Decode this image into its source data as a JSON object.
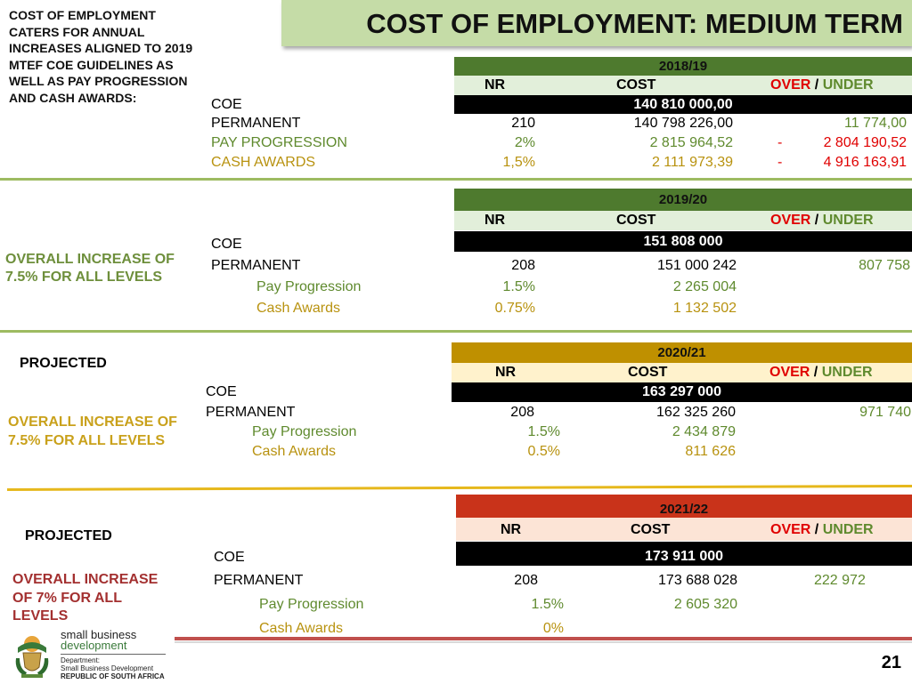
{
  "title": "COST OF EMPLOYMENT: MEDIUM TERM",
  "intro_note": "COST OF EMPLOYMENT CATERS FOR ANNUAL INCREASES ALIGNED TO 2019 MTEF COE GUIDELINES AS WELL AS PAY PROGRESSION AND CASH AWARDS:",
  "page_number": "21",
  "colors": {
    "title_bg": "#c5dca7",
    "green_band": "#4e7a2e",
    "green_header": "#e2efda",
    "gold_band": "#bf9000",
    "gold_header": "#fff2cc",
    "red_band": "#c9331a",
    "red_header": "#fce4d6"
  },
  "headers": {
    "nr": "NR",
    "cost": "COST",
    "over": "OVER",
    "slash": "/",
    "under": "UNDER"
  },
  "labels": {
    "coe": "COE",
    "permanent": "PERMANENT"
  },
  "block1": {
    "year": "2018/19",
    "coe_total": "140 810 000,00",
    "rows": {
      "pay_label": "PAY PROGRESSION",
      "cash_label": "CASH AWARDS",
      "perm_nr": "210",
      "perm_cost": "140 798 226,00",
      "perm_over": "11 774,00",
      "pay_nr": "2%",
      "pay_cost": "2 815 964,52",
      "pay_dash": "-",
      "pay_over": "2 804 190,52",
      "cash_nr": "1,5%",
      "cash_cost": "2 111 973,39",
      "cash_dash": "-",
      "cash_over": "4 916 163,91"
    }
  },
  "block2": {
    "year": "2019/20",
    "side_note": "OVERALL INCREASE OF 7.5% FOR ALL LEVELS",
    "coe_total": "151 808 000",
    "rows": {
      "pay_label": "Pay Progression",
      "cash_label": "Cash Awards",
      "perm_nr": "208",
      "perm_cost": "151 000 242",
      "perm_over": "807 758",
      "pay_nr": "1.5%",
      "pay_cost": "2 265 004",
      "cash_nr": "0.75%",
      "cash_cost": "1 132 502"
    }
  },
  "block3": {
    "year": "2020/21",
    "projected": "PROJECTED",
    "side_note": "OVERALL INCREASE OF 7.5% FOR ALL LEVELS",
    "coe_total": "163 297 000",
    "rows": {
      "pay_label": "Pay Progression",
      "cash_label": "Cash Awards",
      "perm_nr": "208",
      "perm_cost": "162 325 260",
      "perm_over": "971 740",
      "pay_nr": "1.5%",
      "pay_cost": "2 434 879",
      "cash_nr": "0.5%",
      "cash_cost": "811 626"
    }
  },
  "block4": {
    "year": "2021/22",
    "projected": "PROJECTED",
    "side_note": "OVERALL INCREASE OF 7% FOR ALL LEVELS",
    "coe_total": "173 911 000",
    "rows": {
      "pay_label": "Pay Progression",
      "cash_label": "Cash Awards",
      "perm_nr": "208",
      "perm_cost": "173 688 028",
      "perm_over": "222 972",
      "pay_nr": "1.5%",
      "pay_cost": "2 605 320",
      "cash_nr": "0%"
    }
  },
  "logo": {
    "name_line1": "small business",
    "name_line2": "development",
    "dept_line1": "Department:",
    "dept_line2": "Small Business Development",
    "dept_line3": "REPUBLIC OF SOUTH AFRICA",
    "crest_icon": "coat-of-arms-icon"
  }
}
